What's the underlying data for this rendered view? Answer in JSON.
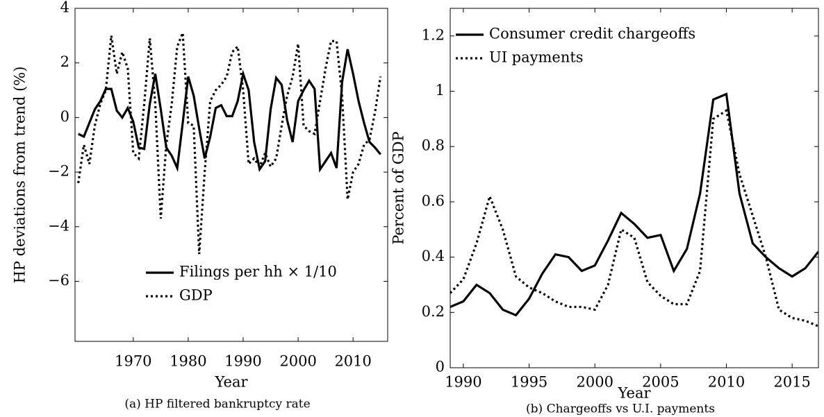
{
  "chart_data": [
    {
      "type": "line",
      "caption": "(a)  HP filtered bankruptcy rate",
      "xlabel": "Year",
      "ylabel": "HP deviations from trend (%)",
      "x": [
        1960,
        1961,
        1962,
        1963,
        1964,
        1965,
        1966,
        1967,
        1968,
        1969,
        1970,
        1971,
        1972,
        1973,
        1974,
        1975,
        1976,
        1977,
        1978,
        1979,
        1980,
        1981,
        1982,
        1983,
        1984,
        1985,
        1986,
        1987,
        1988,
        1989,
        1990,
        1991,
        1992,
        1993,
        1994,
        1995,
        1996,
        1997,
        1998,
        1999,
        2000,
        2001,
        2002,
        2003,
        2004,
        2005,
        2006,
        2007,
        2008,
        2009,
        2010,
        2011,
        2012,
        2013,
        2014,
        2015
      ],
      "series": [
        {
          "name": "Filings per hh × 1/10",
          "color": "#000000",
          "dash": "solid",
          "values": [
            -0.6,
            -0.7,
            -0.2,
            0.3,
            0.6,
            1.05,
            1.05,
            0.25,
            0.0,
            0.35,
            -0.15,
            -1.1,
            -1.15,
            0.5,
            1.6,
            0.3,
            -1.1,
            -1.4,
            -1.85,
            -0.2,
            1.5,
            0.8,
            -0.4,
            -1.5,
            -0.7,
            0.35,
            0.45,
            0.05,
            0.05,
            0.6,
            1.6,
            1.0,
            -0.9,
            -1.9,
            -1.6,
            0.3,
            1.45,
            1.2,
            -0.1,
            -0.9,
            0.6,
            1.0,
            1.35,
            1.05,
            -1.9,
            -1.6,
            -1.3,
            -1.85,
            1.3,
            2.5,
            1.6,
            0.6,
            -0.2,
            -0.9,
            -1.1,
            -1.35
          ]
        },
        {
          "name": "GDP",
          "color": "#000000",
          "dash": "dotted",
          "values": [
            -2.4,
            -1.0,
            -1.7,
            -0.3,
            0.5,
            1.0,
            3.0,
            1.6,
            2.4,
            1.8,
            -1.3,
            -1.5,
            0.5,
            2.9,
            0.5,
            -3.7,
            -1.0,
            0.5,
            2.6,
            3.1,
            -0.2,
            -0.3,
            -5.0,
            -2.0,
            0.6,
            1.0,
            1.2,
            1.5,
            2.4,
            2.6,
            1.0,
            -1.7,
            -1.5,
            -1.8,
            -1.3,
            -1.8,
            -1.5,
            -0.3,
            0.8,
            1.5,
            2.7,
            -0.3,
            -0.5,
            -0.6,
            0.6,
            1.8,
            2.8,
            2.8,
            0.8,
            -3.0,
            -2.0,
            -1.7,
            -1.0,
            -0.8,
            0.2,
            1.5
          ]
        }
      ],
      "xlim": [
        1959.4,
        2016.3
      ],
      "xticks": [
        1970,
        1980,
        1990,
        2000,
        2010
      ],
      "ylim": [
        -8.2,
        4
      ],
      "yticks": [
        {
          "value": -6,
          "label": "−6"
        },
        {
          "value": -4,
          "label": "−4"
        },
        {
          "value": -2,
          "label": "−2"
        },
        0,
        2,
        4
      ],
      "legend": "lower right"
    },
    {
      "type": "line",
      "caption": "(b) Chargeoffs vs U.I. payments",
      "xlabel": "Year",
      "ylabel": "Percent of GDP",
      "x": [
        1989,
        1990,
        1991,
        1992,
        1993,
        1994,
        1995,
        1996,
        1997,
        1998,
        1999,
        2000,
        2001,
        2002,
        2003,
        2004,
        2005,
        2006,
        2007,
        2008,
        2009,
        2010,
        2011,
        2012,
        2013,
        2014,
        2015,
        2016,
        2017
      ],
      "series": [
        {
          "name": "Consumer credit chargeoffs",
          "color": "#000000",
          "dash": "solid",
          "values": [
            0.22,
            0.24,
            0.3,
            0.27,
            0.21,
            0.19,
            0.25,
            0.34,
            0.41,
            0.4,
            0.35,
            0.37,
            0.46,
            0.56,
            0.52,
            0.47,
            0.48,
            0.35,
            0.43,
            0.63,
            0.97,
            0.99,
            0.63,
            0.45,
            0.4,
            0.36,
            0.33,
            0.36,
            0.42
          ]
        },
        {
          "name": "UI payments",
          "color": "#000000",
          "dash": "dotted",
          "values": [
            0.27,
            0.32,
            0.45,
            0.62,
            0.5,
            0.33,
            0.29,
            0.27,
            0.24,
            0.22,
            0.22,
            0.21,
            0.3,
            0.5,
            0.47,
            0.31,
            0.26,
            0.23,
            0.23,
            0.35,
            0.9,
            0.93,
            0.7,
            0.55,
            0.4,
            0.21,
            0.18,
            0.17,
            0.15
          ]
        }
      ],
      "xlim": [
        1989,
        2017
      ],
      "xticks": [
        1990,
        1995,
        2000,
        2005,
        2010,
        2015
      ],
      "ylim": [
        0,
        1.3
      ],
      "yticks": [
        0,
        0.2,
        0.4,
        0.6,
        0.8,
        1,
        1.2
      ],
      "legend": "upper left"
    }
  ]
}
